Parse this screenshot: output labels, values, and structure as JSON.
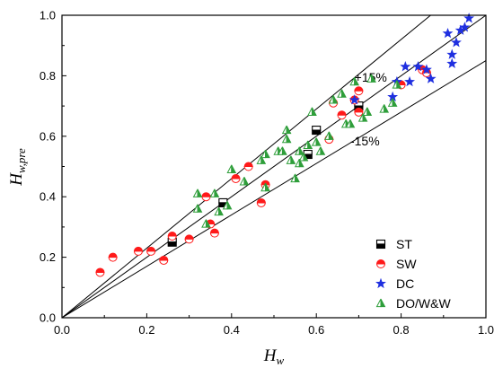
{
  "chart_data": {
    "type": "scatter",
    "xlabel": {
      "main": "H",
      "sub": "w"
    },
    "ylabel": {
      "main": "H",
      "sub": "w,pre"
    },
    "xlim": [
      0.0,
      1.0
    ],
    "ylim": [
      0.0,
      1.0
    ],
    "xticks": [
      "0.0",
      "0.2",
      "0.4",
      "0.6",
      "0.8",
      "1.0"
    ],
    "yticks": [
      "0.0",
      "0.2",
      "0.4",
      "0.6",
      "0.8",
      "1.0"
    ],
    "grid": false,
    "legend_position": "bottom-right",
    "reference_lines": [
      {
        "slope": 1.0,
        "label": ""
      },
      {
        "slope": 1.15,
        "label": "+15%",
        "label_x": 0.69,
        "label_y": 0.78
      },
      {
        "slope": 0.85,
        "label": "-15%",
        "label_x": 0.68,
        "label_y": 0.57
      }
    ],
    "series": [
      {
        "name": "ST",
        "marker": "half-square",
        "color": "#000000",
        "points": [
          [
            0.26,
            0.25
          ],
          [
            0.38,
            0.38
          ],
          [
            0.58,
            0.54
          ],
          [
            0.6,
            0.62
          ],
          [
            0.7,
            0.7
          ]
        ]
      },
      {
        "name": "SW",
        "marker": "half-circle",
        "color": "#ff1a1a",
        "points": [
          [
            0.09,
            0.15
          ],
          [
            0.12,
            0.2
          ],
          [
            0.18,
            0.22
          ],
          [
            0.21,
            0.22
          ],
          [
            0.24,
            0.19
          ],
          [
            0.26,
            0.27
          ],
          [
            0.3,
            0.26
          ],
          [
            0.34,
            0.4
          ],
          [
            0.35,
            0.31
          ],
          [
            0.36,
            0.28
          ],
          [
            0.41,
            0.46
          ],
          [
            0.44,
            0.5
          ],
          [
            0.47,
            0.38
          ],
          [
            0.48,
            0.44
          ],
          [
            0.63,
            0.59
          ],
          [
            0.64,
            0.71
          ],
          [
            0.66,
            0.67
          ],
          [
            0.69,
            0.72
          ],
          [
            0.7,
            0.75
          ],
          [
            0.7,
            0.68
          ],
          [
            0.8,
            0.77
          ],
          [
            0.85,
            0.82
          ],
          [
            0.86,
            0.81
          ]
        ]
      },
      {
        "name": "DC",
        "marker": "star",
        "color": "#1f2fe0",
        "points": [
          [
            0.69,
            0.72
          ],
          [
            0.78,
            0.73
          ],
          [
            0.79,
            0.78
          ],
          [
            0.81,
            0.83
          ],
          [
            0.82,
            0.78
          ],
          [
            0.84,
            0.83
          ],
          [
            0.86,
            0.82
          ],
          [
            0.87,
            0.79
          ],
          [
            0.91,
            0.94
          ],
          [
            0.92,
            0.87
          ],
          [
            0.92,
            0.84
          ],
          [
            0.93,
            0.91
          ],
          [
            0.94,
            0.95
          ],
          [
            0.95,
            0.96
          ],
          [
            0.96,
            0.99
          ]
        ]
      },
      {
        "name": "DO/W&W",
        "marker": "half-triangle",
        "color": "#2e9e3a",
        "points": [
          [
            0.32,
            0.41
          ],
          [
            0.32,
            0.36
          ],
          [
            0.34,
            0.31
          ],
          [
            0.36,
            0.41
          ],
          [
            0.37,
            0.35
          ],
          [
            0.39,
            0.37
          ],
          [
            0.4,
            0.49
          ],
          [
            0.43,
            0.45
          ],
          [
            0.47,
            0.52
          ],
          [
            0.48,
            0.54
          ],
          [
            0.48,
            0.43
          ],
          [
            0.51,
            0.55
          ],
          [
            0.52,
            0.55
          ],
          [
            0.53,
            0.62
          ],
          [
            0.53,
            0.59
          ],
          [
            0.54,
            0.52
          ],
          [
            0.55,
            0.46
          ],
          [
            0.56,
            0.55
          ],
          [
            0.56,
            0.51
          ],
          [
            0.57,
            0.53
          ],
          [
            0.58,
            0.57
          ],
          [
            0.59,
            0.68
          ],
          [
            0.6,
            0.58
          ],
          [
            0.61,
            0.55
          ],
          [
            0.63,
            0.6
          ],
          [
            0.64,
            0.72
          ],
          [
            0.66,
            0.74
          ],
          [
            0.67,
            0.64
          ],
          [
            0.68,
            0.64
          ],
          [
            0.69,
            0.78
          ],
          [
            0.71,
            0.66
          ],
          [
            0.72,
            0.68
          ],
          [
            0.73,
            0.79
          ],
          [
            0.76,
            0.69
          ],
          [
            0.78,
            0.71
          ],
          [
            0.79,
            0.77
          ]
        ]
      }
    ]
  }
}
